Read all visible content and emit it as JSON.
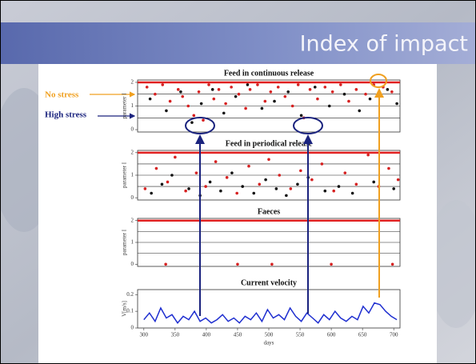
{
  "slide": {
    "title": "Index of impact",
    "annotations": [
      {
        "text": "No stress",
        "color": "#f0a020"
      },
      {
        "text": "High stress",
        "color": "#1a237e"
      }
    ]
  },
  "chart_data": [
    {
      "type": "scatter",
      "title": "Feed in continuous release",
      "ylabel": "parameter I",
      "xlim": [
        290,
        710
      ],
      "ylim": [
        -0.1,
        2.1
      ],
      "yticks": [
        0,
        1,
        2
      ],
      "grid_lines": [
        0.5,
        1,
        1.5
      ],
      "threshold": 2,
      "threshold_color": "#e02020",
      "series": [
        {
          "color": "#d62020",
          "x": [
            305,
            318,
            330,
            342,
            355,
            362,
            371,
            380,
            388,
            395,
            404,
            412,
            420,
            431,
            440,
            452,
            463,
            470,
            482,
            494,
            503,
            515,
            526,
            538,
            547,
            556,
            566,
            578,
            590,
            602,
            615,
            628,
            640,
            655,
            668,
            683,
            697
          ],
          "values": [
            1.8,
            1.5,
            1.9,
            1.2,
            1.7,
            1.4,
            1.0,
            0.6,
            1.6,
            0.4,
            1.9,
            1.3,
            1.7,
            1.1,
            1.8,
            1.5,
            0.9,
            1.7,
            1.9,
            1.2,
            1.6,
            1.8,
            1.4,
            1.0,
            1.9,
            0.5,
            1.7,
            1.3,
            1.8,
            1.6,
            1.9,
            1.2,
            1.7,
            1.5,
            1.9,
            1.8,
            1.6
          ]
        },
        {
          "color": "#111111",
          "x": [
            310,
            336,
            359,
            377,
            392,
            410,
            428,
            447,
            466,
            489,
            509,
            531,
            552,
            574,
            597,
            621,
            645,
            662,
            690,
            705
          ],
          "values": [
            1.3,
            0.8,
            1.6,
            0.3,
            1.1,
            1.7,
            0.7,
            1.4,
            1.9,
            0.9,
            1.2,
            1.6,
            0.6,
            1.8,
            1.0,
            1.5,
            0.8,
            1.3,
            1.7,
            1.1
          ]
        }
      ]
    },
    {
      "type": "scatter",
      "title": "Feed in periodical release",
      "ylabel": "parameter I",
      "xlim": [
        290,
        710
      ],
      "ylim": [
        -0.1,
        2.1
      ],
      "yticks": [
        0,
        1,
        2
      ],
      "grid_lines": [
        0.5,
        1,
        1.5
      ],
      "threshold": 2,
      "threshold_color": "#e02020",
      "series": [
        {
          "color": "#d62020",
          "x": [
            302,
            320,
            338,
            350,
            367,
            384,
            399,
            415,
            433,
            449,
            468,
            485,
            500,
            517,
            535,
            551,
            569,
            585,
            604,
            622,
            640,
            659,
            676,
            692,
            707
          ],
          "values": [
            0.4,
            1.3,
            0.7,
            1.8,
            0.3,
            1.1,
            0.5,
            1.6,
            0.9,
            0.2,
            1.4,
            0.6,
            1.7,
            1.0,
            0.4,
            1.2,
            0.8,
            1.5,
            0.3,
            1.1,
            0.6,
            1.9,
            0.5,
            1.3,
            0.8
          ]
        },
        {
          "color": "#111111",
          "x": [
            312,
            329,
            345,
            372,
            390,
            406,
            423,
            441,
            458,
            476,
            495,
            512,
            528,
            546,
            563,
            590,
            612,
            634,
            668,
            700
          ],
          "values": [
            0.2,
            0.6,
            1.0,
            0.4,
            0.1,
            0.7,
            0.3,
            1.1,
            0.5,
            0.2,
            0.8,
            0.4,
            0.1,
            0.6,
            0.9,
            0.3,
            0.5,
            0.2,
            0.7,
            0.4
          ]
        }
      ]
    },
    {
      "type": "scatter",
      "title": "Faeces",
      "ylabel": "parameter I",
      "xlim": [
        290,
        710
      ],
      "ylim": [
        -0.1,
        2.1
      ],
      "yticks": [
        0,
        1,
        2
      ],
      "grid_lines": [
        0.5,
        1,
        1.5
      ],
      "threshold": 2,
      "threshold_color": "#e02020",
      "series": [
        {
          "color": "#d62020",
          "x": [
            335,
            450,
            505,
            600,
            698
          ],
          "values": [
            0,
            0,
            0,
            0,
            0
          ]
        }
      ]
    },
    {
      "type": "line",
      "title": "Current velocity",
      "ylabel": "V[m/s]",
      "xlabel": "days",
      "xlim": [
        290,
        710
      ],
      "ylim": [
        0,
        0.23
      ],
      "yticks": [
        0,
        0.1,
        0.2
      ],
      "xticks": [
        300,
        350,
        400,
        450,
        500,
        550,
        600,
        650,
        700
      ],
      "x": [
        300,
        309,
        318,
        327,
        336,
        345,
        354,
        363,
        372,
        381,
        390,
        399,
        408,
        417,
        426,
        435,
        444,
        453,
        462,
        471,
        480,
        489,
        498,
        507,
        516,
        525,
        534,
        543,
        552,
        561,
        570,
        579,
        588,
        597,
        606,
        615,
        624,
        633,
        642,
        651,
        660,
        669,
        678,
        687,
        696,
        705
      ],
      "series": [
        {
          "color": "#1f2fd0",
          "values": [
            0.05,
            0.09,
            0.04,
            0.12,
            0.06,
            0.08,
            0.03,
            0.07,
            0.05,
            0.1,
            0.04,
            0.06,
            0.03,
            0.05,
            0.08,
            0.04,
            0.06,
            0.03,
            0.07,
            0.05,
            0.09,
            0.04,
            0.11,
            0.06,
            0.08,
            0.05,
            0.12,
            0.07,
            0.04,
            0.09,
            0.06,
            0.03,
            0.08,
            0.05,
            0.1,
            0.06,
            0.04,
            0.07,
            0.05,
            0.13,
            0.09,
            0.15,
            0.14,
            0.1,
            0.07,
            0.05
          ]
        }
      ]
    }
  ]
}
